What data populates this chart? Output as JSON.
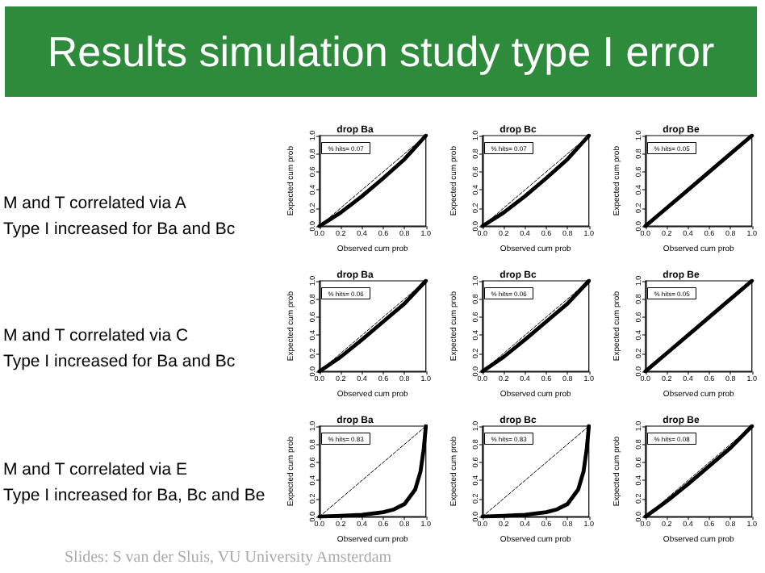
{
  "chart_data": [
    {
      "type": "other",
      "title": "Results simulation study type I error",
      "annotations": [
        "M and T correlated via A\nType I increased for Ba and Bc",
        "M and T correlated via C\nType I increased for Ba and Bc",
        "M and T correlated via E\nType I increased for Ba, Bc and Be",
        "Slides: S van der Sluis, VU University Amsterdam"
      ]
    },
    {
      "type": "line",
      "title": "drop Ba",
      "xlabel": "Observed cum prob",
      "ylabel": "Expected cum prob",
      "annotations": [
        "% hits= 0.07"
      ],
      "marker": "none",
      "xlim": [
        0,
        1
      ],
      "ylim": [
        0,
        1
      ],
      "xticks": [
        {
          "value": 0,
          "label": "0.0"
        },
        {
          "value": 0.2,
          "label": "0.2"
        },
        {
          "value": 0.4,
          "label": "0.4"
        },
        {
          "value": 0.6,
          "label": "0.6"
        },
        {
          "value": 0.8,
          "label": "0.8"
        },
        {
          "value": 1,
          "label": "1.0"
        }
      ],
      "yticks": [
        {
          "value": 0,
          "label": "0.0"
        },
        {
          "value": 0.2,
          "label": "0.2"
        },
        {
          "value": 0.4,
          "label": "0.4"
        },
        {
          "value": 0.6,
          "label": "0.6"
        },
        {
          "value": 0.8,
          "label": "0.8"
        },
        {
          "value": 1,
          "label": "1.0"
        }
      ],
      "series": [
        {
          "color": "#000000",
          "line_style": "dashed",
          "x": [
            0,
            1
          ],
          "values": [
            0,
            1
          ]
        },
        {
          "color": "#000000",
          "line_style": "solid",
          "x": [
            0,
            0.2,
            0.4,
            0.6,
            0.8,
            1
          ],
          "values": [
            0,
            0.15,
            0.33,
            0.53,
            0.74,
            1
          ]
        }
      ]
    },
    {
      "type": "line",
      "title": "drop Bc",
      "xlabel": "Observed cum prob",
      "ylabel": "Expected cum prob",
      "annotations": [
        "% hits= 0.07"
      ],
      "marker": "none",
      "xlim": [
        0,
        1
      ],
      "ylim": [
        0,
        1
      ],
      "xticks": [
        {
          "value": 0,
          "label": "0.0"
        },
        {
          "value": 0.2,
          "label": "0.2"
        },
        {
          "value": 0.4,
          "label": "0.4"
        },
        {
          "value": 0.6,
          "label": "0.6"
        },
        {
          "value": 0.8,
          "label": "0.8"
        },
        {
          "value": 1,
          "label": "1.0"
        }
      ],
      "yticks": [
        {
          "value": 0,
          "label": "0.0"
        },
        {
          "value": 0.2,
          "label": "0.2"
        },
        {
          "value": 0.4,
          "label": "0.4"
        },
        {
          "value": 0.6,
          "label": "0.6"
        },
        {
          "value": 0.8,
          "label": "0.8"
        },
        {
          "value": 1,
          "label": "1.0"
        }
      ],
      "series": [
        {
          "color": "#000000",
          "line_style": "dashed",
          "x": [
            0,
            1
          ],
          "values": [
            0,
            1
          ]
        },
        {
          "color": "#000000",
          "line_style": "solid",
          "x": [
            0,
            0.2,
            0.4,
            0.6,
            0.8,
            1
          ],
          "values": [
            0,
            0.15,
            0.33,
            0.53,
            0.74,
            1
          ]
        }
      ]
    },
    {
      "type": "line",
      "title": "drop Be",
      "xlabel": "Observed cum prob",
      "ylabel": "Expected cum prob",
      "annotations": [
        "% hits= 0.05"
      ],
      "marker": "none",
      "xlim": [
        0,
        1
      ],
      "ylim": [
        0,
        1
      ],
      "xticks": [
        {
          "value": 0,
          "label": "0.0"
        },
        {
          "value": 0.2,
          "label": "0.2"
        },
        {
          "value": 0.4,
          "label": "0.4"
        },
        {
          "value": 0.6,
          "label": "0.6"
        },
        {
          "value": 0.8,
          "label": "0.8"
        },
        {
          "value": 1,
          "label": "1.0"
        }
      ],
      "yticks": [
        {
          "value": 0,
          "label": "0.0"
        },
        {
          "value": 0.2,
          "label": "0.2"
        },
        {
          "value": 0.4,
          "label": "0.4"
        },
        {
          "value": 0.6,
          "label": "0.6"
        },
        {
          "value": 0.8,
          "label": "0.8"
        },
        {
          "value": 1,
          "label": "1.0"
        }
      ],
      "series": [
        {
          "color": "#000000",
          "line_style": "solid",
          "x": [
            0,
            0.2,
            0.4,
            0.6,
            0.8,
            1
          ],
          "values": [
            0,
            0.2,
            0.4,
            0.6,
            0.8,
            1
          ]
        }
      ]
    },
    {
      "type": "line",
      "title": "drop Ba",
      "xlabel": "Observed cum prob",
      "ylabel": "Expected cum prob",
      "annotations": [
        "% hits= 0.06"
      ],
      "marker": "none",
      "xlim": [
        0,
        1
      ],
      "ylim": [
        0,
        1
      ],
      "xticks": [
        {
          "value": 0,
          "label": "0.0"
        },
        {
          "value": 0.2,
          "label": "0.2"
        },
        {
          "value": 0.4,
          "label": "0.4"
        },
        {
          "value": 0.6,
          "label": "0.6"
        },
        {
          "value": 0.8,
          "label": "0.8"
        },
        {
          "value": 1,
          "label": "1.0"
        }
      ],
      "yticks": [
        {
          "value": 0,
          "label": "0.0"
        },
        {
          "value": 0.2,
          "label": "0.2"
        },
        {
          "value": 0.4,
          "label": "0.4"
        },
        {
          "value": 0.6,
          "label": "0.6"
        },
        {
          "value": 0.8,
          "label": "0.8"
        },
        {
          "value": 1,
          "label": "1.0"
        }
      ],
      "series": [
        {
          "color": "#000000",
          "line_style": "dashed",
          "x": [
            0,
            1
          ],
          "values": [
            0,
            1
          ]
        },
        {
          "color": "#000000",
          "line_style": "solid",
          "x": [
            0,
            0.2,
            0.4,
            0.6,
            0.8,
            1
          ],
          "values": [
            0,
            0.16,
            0.35,
            0.55,
            0.75,
            1
          ]
        }
      ]
    },
    {
      "type": "line",
      "title": "drop Bc",
      "xlabel": "Observed cum prob",
      "ylabel": "Expected cum prob",
      "annotations": [
        "% hits= 0.06"
      ],
      "marker": "none",
      "xlim": [
        0,
        1
      ],
      "ylim": [
        0,
        1
      ],
      "xticks": [
        {
          "value": 0,
          "label": "0.0"
        },
        {
          "value": 0.2,
          "label": "0.2"
        },
        {
          "value": 0.4,
          "label": "0.4"
        },
        {
          "value": 0.6,
          "label": "0.6"
        },
        {
          "value": 0.8,
          "label": "0.8"
        },
        {
          "value": 1,
          "label": "1.0"
        }
      ],
      "yticks": [
        {
          "value": 0,
          "label": "0.0"
        },
        {
          "value": 0.2,
          "label": "0.2"
        },
        {
          "value": 0.4,
          "label": "0.4"
        },
        {
          "value": 0.6,
          "label": "0.6"
        },
        {
          "value": 0.8,
          "label": "0.8"
        },
        {
          "value": 1,
          "label": "1.0"
        }
      ],
      "series": [
        {
          "color": "#000000",
          "line_style": "dashed",
          "x": [
            0,
            1
          ],
          "values": [
            0,
            1
          ]
        },
        {
          "color": "#000000",
          "line_style": "solid",
          "x": [
            0,
            0.2,
            0.4,
            0.6,
            0.8,
            1
          ],
          "values": [
            0,
            0.16,
            0.35,
            0.55,
            0.75,
            1
          ]
        }
      ]
    },
    {
      "type": "line",
      "title": "drop Be",
      "xlabel": "Observed cum prob",
      "ylabel": "Expected cum prob",
      "annotations": [
        "% hits= 0.05"
      ],
      "marker": "none",
      "xlim": [
        0,
        1
      ],
      "ylim": [
        0,
        1
      ],
      "xticks": [
        {
          "value": 0,
          "label": "0.0"
        },
        {
          "value": 0.2,
          "label": "0.2"
        },
        {
          "value": 0.4,
          "label": "0.4"
        },
        {
          "value": 0.6,
          "label": "0.6"
        },
        {
          "value": 0.8,
          "label": "0.8"
        },
        {
          "value": 1,
          "label": "1.0"
        }
      ],
      "yticks": [
        {
          "value": 0,
          "label": "0.0"
        },
        {
          "value": 0.2,
          "label": "0.2"
        },
        {
          "value": 0.4,
          "label": "0.4"
        },
        {
          "value": 0.6,
          "label": "0.6"
        },
        {
          "value": 0.8,
          "label": "0.8"
        },
        {
          "value": 1,
          "label": "1.0"
        }
      ],
      "series": [
        {
          "color": "#000000",
          "line_style": "solid",
          "x": [
            0,
            0.2,
            0.4,
            0.6,
            0.8,
            1
          ],
          "values": [
            0,
            0.2,
            0.4,
            0.6,
            0.8,
            1
          ]
        }
      ]
    },
    {
      "type": "line",
      "title": "drop Ba",
      "xlabel": "Observed cum prob",
      "ylabel": "Expected cum prob",
      "annotations": [
        "% hits= 0.83"
      ],
      "marker": "none",
      "xlim": [
        0,
        1
      ],
      "ylim": [
        0,
        1
      ],
      "xticks": [
        {
          "value": 0,
          "label": "0.0"
        },
        {
          "value": 0.2,
          "label": "0.2"
        },
        {
          "value": 0.4,
          "label": "0.4"
        },
        {
          "value": 0.6,
          "label": "0.6"
        },
        {
          "value": 0.8,
          "label": "0.8"
        },
        {
          "value": 1,
          "label": "1.0"
        }
      ],
      "yticks": [
        {
          "value": 0,
          "label": "0.0"
        },
        {
          "value": 0.2,
          "label": "0.2"
        },
        {
          "value": 0.4,
          "label": "0.4"
        },
        {
          "value": 0.6,
          "label": "0.6"
        },
        {
          "value": 0.8,
          "label": "0.8"
        },
        {
          "value": 1,
          "label": "1.0"
        }
      ],
      "series": [
        {
          "color": "#000000",
          "line_style": "dashed",
          "x": [
            0,
            1
          ],
          "values": [
            0,
            1
          ]
        },
        {
          "color": "#000000",
          "line_style": "solid",
          "x": [
            0,
            0.2,
            0.4,
            0.6,
            0.7,
            0.8,
            0.9,
            0.95,
            0.98,
            1
          ],
          "values": [
            0,
            0.01,
            0.02,
            0.05,
            0.08,
            0.14,
            0.3,
            0.5,
            0.75,
            1
          ]
        }
      ]
    },
    {
      "type": "line",
      "title": "drop Bc",
      "xlabel": "Observed cum prob",
      "ylabel": "Expected cum prob",
      "annotations": [
        "% hits= 0.83"
      ],
      "marker": "none",
      "xlim": [
        0,
        1
      ],
      "ylim": [
        0,
        1
      ],
      "xticks": [
        {
          "value": 0,
          "label": "0.0"
        },
        {
          "value": 0.2,
          "label": "0.2"
        },
        {
          "value": 0.4,
          "label": "0.4"
        },
        {
          "value": 0.6,
          "label": "0.6"
        },
        {
          "value": 0.8,
          "label": "0.8"
        },
        {
          "value": 1,
          "label": "1.0"
        }
      ],
      "yticks": [
        {
          "value": 0,
          "label": "0.0"
        },
        {
          "value": 0.2,
          "label": "0.2"
        },
        {
          "value": 0.4,
          "label": "0.4"
        },
        {
          "value": 0.6,
          "label": "0.6"
        },
        {
          "value": 0.8,
          "label": "0.8"
        },
        {
          "value": 1,
          "label": "1.0"
        }
      ],
      "series": [
        {
          "color": "#000000",
          "line_style": "dashed",
          "x": [
            0,
            1
          ],
          "values": [
            0,
            1
          ]
        },
        {
          "color": "#000000",
          "line_style": "solid",
          "x": [
            0,
            0.2,
            0.4,
            0.6,
            0.7,
            0.8,
            0.9,
            0.95,
            0.98,
            1
          ],
          "values": [
            0,
            0.01,
            0.02,
            0.05,
            0.08,
            0.14,
            0.3,
            0.5,
            0.75,
            1
          ]
        }
      ]
    },
    {
      "type": "line",
      "title": "drop Be",
      "xlabel": "Observed cum prob",
      "ylabel": "Expected cum prob",
      "annotations": [
        "% hits= 0.08"
      ],
      "marker": "none",
      "xlim": [
        0,
        1
      ],
      "ylim": [
        0,
        1
      ],
      "xticks": [
        {
          "value": 0,
          "label": "0.0"
        },
        {
          "value": 0.2,
          "label": "0.2"
        },
        {
          "value": 0.4,
          "label": "0.4"
        },
        {
          "value": 0.6,
          "label": "0.6"
        },
        {
          "value": 0.8,
          "label": "0.8"
        },
        {
          "value": 1,
          "label": "1.0"
        }
      ],
      "yticks": [
        {
          "value": 0,
          "label": "0.0"
        },
        {
          "value": 0.2,
          "label": "0.2"
        },
        {
          "value": 0.4,
          "label": "0.4"
        },
        {
          "value": 0.6,
          "label": "0.6"
        },
        {
          "value": 0.8,
          "label": "0.8"
        },
        {
          "value": 1,
          "label": "1.0"
        }
      ],
      "series": [
        {
          "color": "#000000",
          "line_style": "dashed",
          "x": [
            0,
            1
          ],
          "values": [
            0,
            1
          ]
        },
        {
          "color": "#000000",
          "line_style": "solid",
          "x": [
            0,
            0.2,
            0.4,
            0.6,
            0.8,
            1
          ],
          "values": [
            0,
            0.17,
            0.36,
            0.56,
            0.76,
            1
          ]
        }
      ]
    }
  ]
}
